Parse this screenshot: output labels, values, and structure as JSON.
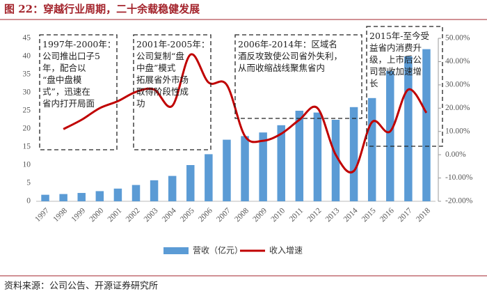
{
  "chart_data": {
    "type": "bar-line",
    "title": "图 22：穿越行业周期，二十余载稳健发展",
    "source": "资料来源：公司公告、开源证券研究所",
    "categories": [
      "1997",
      "1998",
      "1999",
      "2000",
      "2001",
      "2002",
      "2003",
      "2004",
      "2005",
      "2006",
      "2007",
      "2008",
      "2009",
      "2010",
      "2011",
      "2012",
      "2013",
      "2014",
      "2015",
      "2016",
      "2017",
      "2018"
    ],
    "series": [
      {
        "name": "营收（亿元）",
        "color": "#5b9bd5",
        "type": "bar",
        "values": [
          1.8,
          2.0,
          2.3,
          2.8,
          3.5,
          4.5,
          5.8,
          7.0,
          10.0,
          13.0,
          17.0,
          18.0,
          19.0,
          21.0,
          25.0,
          24.5,
          22.5,
          26.0,
          28.5,
          36.0,
          40.0,
          42.0
        ]
      },
      {
        "name": "收入增速",
        "color": "#c00000",
        "type": "line",
        "axis": "y2",
        "values": [
          null,
          11,
          15,
          20,
          23,
          27,
          28,
          21,
          43,
          31,
          30,
          8,
          6,
          9,
          15,
          20,
          0,
          -7,
          14,
          10,
          28,
          18
        ]
      }
    ],
    "ylim": [
      0,
      45
    ],
    "yticks": [
      0,
      5,
      10,
      15,
      20,
      25,
      30,
      35,
      40,
      45
    ],
    "y2lim": [
      -20,
      50
    ],
    "y2ticks": [
      {
        "value": -20,
        "label": "-20.00%"
      },
      {
        "value": -10,
        "label": "-10.00%"
      },
      {
        "value": 0,
        "label": "0.00%"
      },
      {
        "value": 10,
        "label": "10.00%"
      },
      {
        "value": 20,
        "label": "20.00%"
      },
      {
        "value": 30,
        "label": "30.00%"
      },
      {
        "value": 40,
        "label": "40.00%"
      },
      {
        "value": 50,
        "label": "50.00%"
      }
    ],
    "legend": "bottom",
    "annotations": [
      [
        "1997年-2000年：",
        "公司推出口子5",
        "年，配合以",
        "“盘中盘模",
        "式”，迅速在",
        "省内打开局面"
      ],
      [
        "2001年-2005年：",
        "公司复制“盘",
        "中盘”模式",
        "拓展省外市场",
        "取得阶段性成",
        "功"
      ],
      [
        "2006年-2014年：区域名",
        "酒反攻致使公司省外失利，",
        "从而收缩战线聚焦省内"
      ],
      [
        "2015年-至今受",
        "益省内消费升",
        "级，上市后公",
        "司营收加速增",
        "长"
      ]
    ]
  }
}
